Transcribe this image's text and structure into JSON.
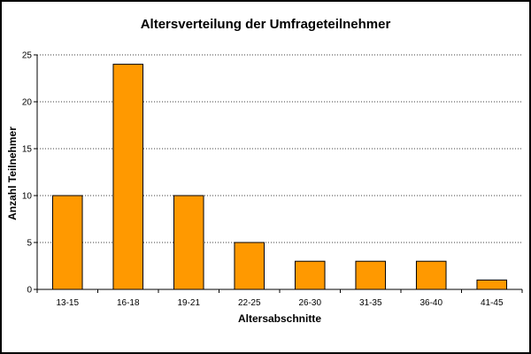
{
  "chart_data": {
    "type": "bar",
    "title": "Altersverteilung der Umfrageteilnehmer",
    "xlabel": "Altersabschnitte",
    "ylabel": "Anzahl Teilnehmer",
    "categories": [
      "13-15",
      "16-18",
      "19-21",
      "22-25",
      "26-30",
      "31-35",
      "36-40",
      "41-45"
    ],
    "values": [
      10,
      24,
      10,
      5,
      3,
      3,
      3,
      1
    ],
    "ylim": [
      0,
      25
    ],
    "yticks": [
      0,
      5,
      10,
      15,
      20,
      25
    ],
    "grid": "horizontal-dotted",
    "legend": "none",
    "colors": {
      "bar_fill": "#ff9900",
      "bar_stroke": "#000000",
      "grid": "#000000",
      "axis": "#000000",
      "background": "#ffffff"
    }
  }
}
